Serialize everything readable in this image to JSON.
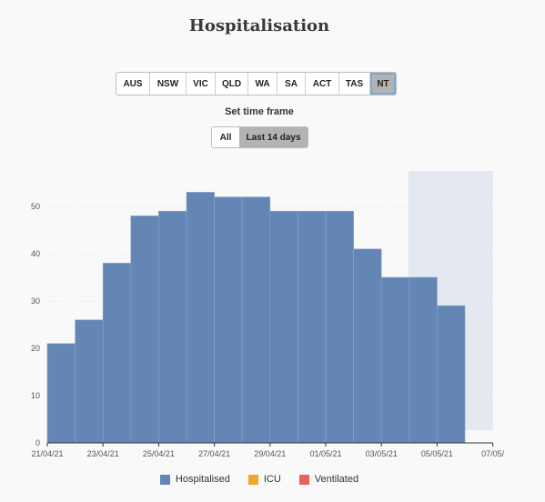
{
  "title": "Hospitalisation",
  "regions": [
    {
      "label": "AUS",
      "active": false
    },
    {
      "label": "NSW",
      "active": false
    },
    {
      "label": "VIC",
      "active": false
    },
    {
      "label": "QLD",
      "active": false
    },
    {
      "label": "WA",
      "active": false
    },
    {
      "label": "SA",
      "active": false
    },
    {
      "label": "ACT",
      "active": false
    },
    {
      "label": "TAS",
      "active": false
    },
    {
      "label": "NT",
      "active": true
    }
  ],
  "timeframe": {
    "label": "Set time frame",
    "options": [
      {
        "label": "All",
        "active": false
      },
      {
        "label": "Last 14 days",
        "active": true
      }
    ]
  },
  "legend": [
    {
      "label": "Hospitalised",
      "color": "#6386b4"
    },
    {
      "label": "ICU",
      "color": "#f2a52b"
    },
    {
      "label": "Ventilated",
      "color": "#e8605c"
    }
  ],
  "chart_data": {
    "type": "bar",
    "categories": [
      "21/04/21",
      "22/04/21",
      "23/04/21",
      "24/04/21",
      "25/04/21",
      "26/04/21",
      "27/04/21",
      "28/04/21",
      "29/04/21",
      "30/04/21",
      "01/05/21",
      "02/05/21",
      "03/05/21",
      "04/05/21",
      "05/05/21"
    ],
    "series": [
      {
        "name": "Hospitalised",
        "values": [
          21,
          26,
          38,
          48,
          49,
          53,
          52,
          52,
          49,
          49,
          49,
          41,
          35,
          35,
          29
        ]
      }
    ],
    "x_tick_labels": [
      "21/04/21",
      "23/04/21",
      "25/04/21",
      "27/04/21",
      "29/04/21",
      "01/05/21",
      "03/05/21",
      "05/05/21",
      "07/05/"
    ],
    "y_ticks": [
      0,
      10,
      20,
      30,
      40,
      50
    ],
    "ylim": [
      0,
      57
    ],
    "grid": true,
    "xlabel": "",
    "ylabel": "",
    "bar_color": "#6386b4",
    "shaded_period_color": "#e3e8f1"
  }
}
